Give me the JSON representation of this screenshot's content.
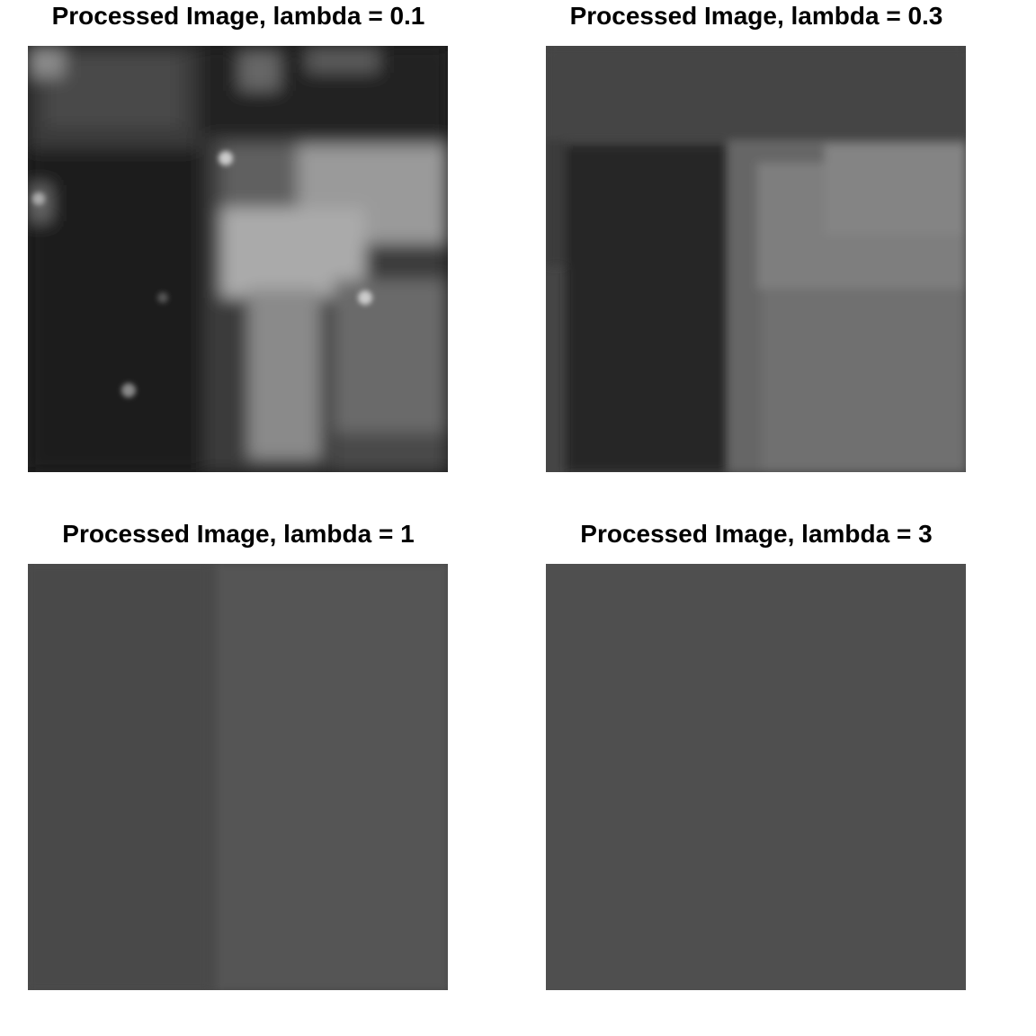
{
  "figure": {
    "panels": [
      {
        "title": "Processed Image, lambda = 0.1",
        "lambda": 0.1
      },
      {
        "title": "Processed Image, lambda = 0.3",
        "lambda": 0.3
      },
      {
        "title": "Processed Image, lambda = 1",
        "lambda": 1
      },
      {
        "title": "Processed Image, lambda = 3",
        "lambda": 3
      }
    ]
  },
  "colors": {
    "background": "#ffffff",
    "title_text": "#000000"
  }
}
